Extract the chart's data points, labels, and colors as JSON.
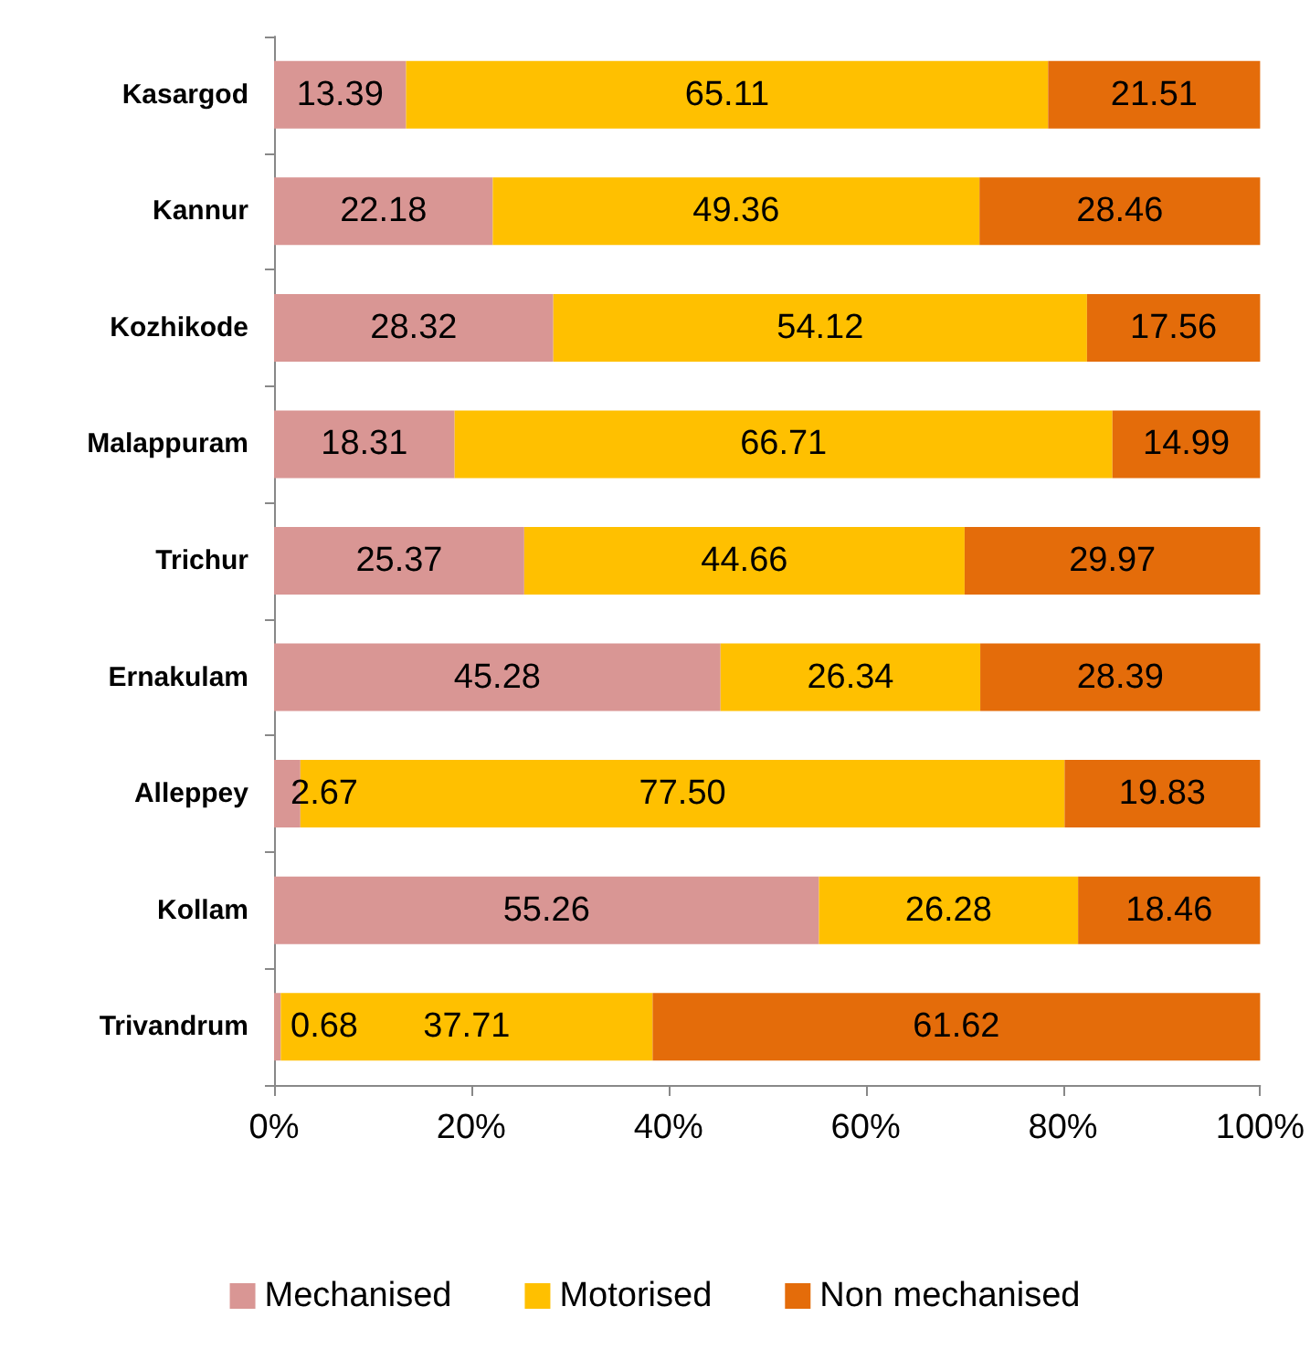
{
  "chart_data": {
    "type": "bar",
    "orientation": "horizontal",
    "stacked": true,
    "categories": [
      "Kasargod",
      "Kannur",
      "Kozhikode",
      "Malappuram",
      "Trichur",
      "Ernakulam",
      "Alleppey",
      "Kollam",
      "Trivandrum"
    ],
    "series": [
      {
        "name": "Mechanised",
        "color": "#d99694",
        "values": [
          13.39,
          22.18,
          28.32,
          18.31,
          25.37,
          45.28,
          2.67,
          55.26,
          0.68
        ],
        "value_labels": [
          "13.39",
          "22.18",
          "28.32",
          "18.31",
          "25.37",
          "45.28",
          "2.67",
          "55.26",
          "0.68"
        ]
      },
      {
        "name": "Motorised",
        "color": "#ffc000",
        "values": [
          65.11,
          49.36,
          54.12,
          66.71,
          44.66,
          26.34,
          77.5,
          26.28,
          37.71
        ],
        "value_labels": [
          "65.11",
          "49.36",
          "54.12",
          "66.71",
          "44.66",
          "26.34",
          "77.50",
          "26.28",
          "37.71"
        ]
      },
      {
        "name": "Non mechanised",
        "color": "#e46c0a",
        "values": [
          21.51,
          28.46,
          17.56,
          14.99,
          29.97,
          28.39,
          19.83,
          18.46,
          61.62
        ],
        "value_labels": [
          "21.51",
          "28.46",
          "17.56",
          "14.99",
          "29.97",
          "28.39",
          "19.83",
          "18.46",
          "61.62"
        ]
      }
    ],
    "xlim": [
      0,
      100
    ],
    "xticks": [
      {
        "value": 0,
        "label": "0%"
      },
      {
        "value": 20,
        "label": "20%"
      },
      {
        "value": 40,
        "label": "40%"
      },
      {
        "value": 60,
        "label": "60%"
      },
      {
        "value": 80,
        "label": "80%"
      },
      {
        "value": 100,
        "label": "100%"
      }
    ],
    "grid": false,
    "legend": "bottom"
  }
}
